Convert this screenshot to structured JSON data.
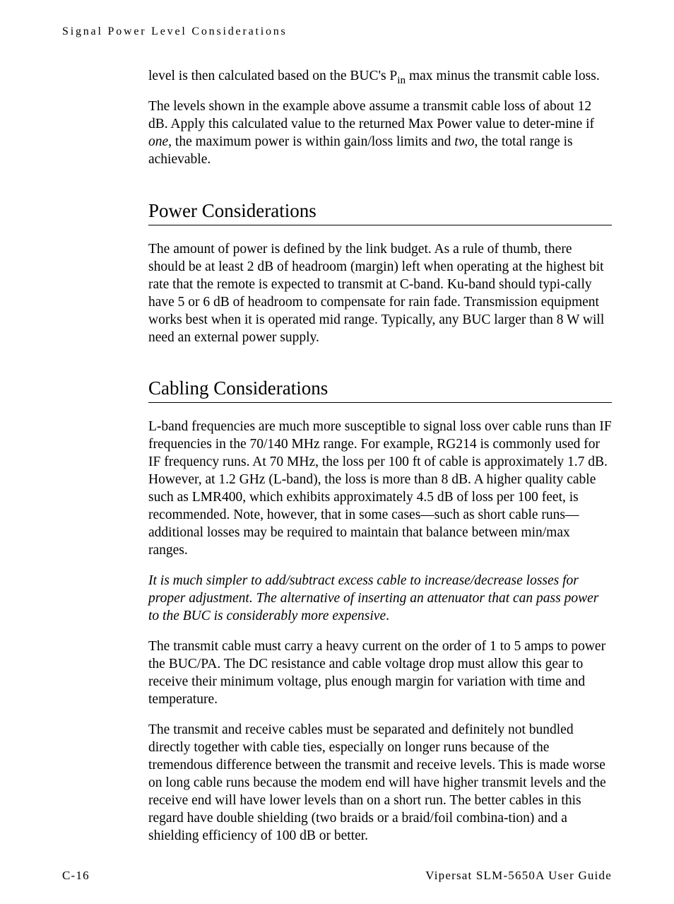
{
  "runningHead": "Signal Power Level Considerations",
  "para1a": "level is then calculated based on the BUC's P",
  "para1sub": "in",
  "para1b": " max minus the transmit cable loss.",
  "para2a": "The levels shown in the example above assume a transmit cable loss of about 12 dB. Apply this calculated value to the returned Max Power value to deter-mine if ",
  "para2i1": "one",
  "para2b": ", the maximum power is within gain/loss limits and ",
  "para2i2": "two",
  "para2c": ", the total range is achievable.",
  "sec1": {
    "title": "Power Considerations",
    "p1": "The amount of power is defined by the link budget. As a rule of thumb, there should be at least 2 dB of headroom (margin) left when operating at the highest bit rate that the remote is expected to transmit at C-band. Ku-band should typi-cally have 5 or 6 dB of headroom to compensate for rain fade. Transmission equipment works best when it is operated mid range. Typically, any BUC larger than 8 W will need an external power supply."
  },
  "sec2": {
    "title": "Cabling Considerations",
    "p1": "L-band frequencies are much more susceptible to signal loss over cable runs than IF frequencies in the 70/140 MHz range. For example, RG214 is commonly used for IF frequency runs. At 70 MHz, the loss per 100 ft of cable is approximately 1.7 dB. However, at 1.2 GHz (L-band), the loss is more than 8 dB. A higher quality cable such as LMR400, which exhibits approximately 4.5 dB of loss per 100 feet, is recommended. Note, however, that in some cases—such as short cable runs—additional losses may be required to maintain that balance between min/max ranges.",
    "p2a": "It is much simpler to add/subtract excess cable to increase/decrease losses for proper adjustment. The alternative of inserting an attenuator that can pass power to the BUC is considerably more expensive",
    "p2b": ".",
    "p3": "The transmit cable must carry a heavy current on the order of 1 to 5 amps to power the BUC/PA. The DC resistance and cable voltage drop must allow this gear to receive their minimum voltage, plus enough margin for variation with time and temperature.",
    "p4": "The transmit and receive cables must be separated and definitely not bundled directly together with cable ties, especially on longer runs because of the tremendous difference between the transmit and receive levels. This is made worse on long cable runs because the modem end will have higher transmit levels and the receive end will have lower levels than on a short run. The better cables in this regard have double shielding (two braids or a braid/foil combina-tion) and a shielding efficiency of 100 dB or better."
  },
  "footer": {
    "left": "C-16",
    "right": "Vipersat SLM-5650A User Guide"
  }
}
